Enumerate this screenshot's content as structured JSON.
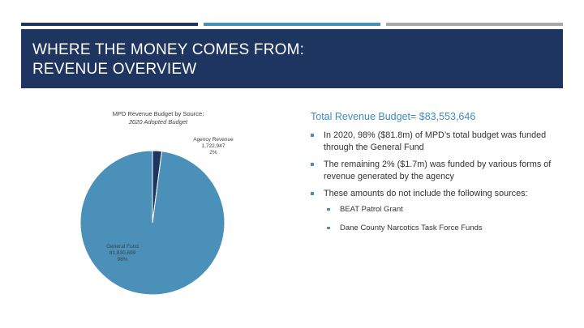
{
  "slide": {
    "title": "WHERE THE MONEY COMES FROM:\nREVENUE OVERVIEW",
    "accent_colors": {
      "dark_navy": "#1e3461",
      "teal_blue": "#4a90b8",
      "gray": "#a7a9ac"
    }
  },
  "chart_data": {
    "type": "pie",
    "title": "MPD Revenue Budget by Source:",
    "subtitle": "2020 Adopted Budget",
    "slices": [
      {
        "name": "Agency Revenue",
        "value_label": "1,722,947",
        "percent_label": "2%",
        "value": 1722947,
        "color": "#1e3461"
      },
      {
        "name": "General Fund",
        "value_label": "81,830,699",
        "percent_label": "98%",
        "value": 81830699,
        "color": "#4a90b8"
      }
    ]
  },
  "content": {
    "total": "Total Revenue Budget= $83,553,646",
    "bullets": [
      "In 2020, 98% ($81.8m) of MPD’s total budget was funded through the General Fund",
      "The remaining 2% ($1.7m) was funded by various forms of revenue generated by the agency",
      "These amounts do not include the following sources:"
    ],
    "sub_bullets": [
      "BEAT Patrol Grant",
      "Dane County Narcotics Task Force Funds"
    ]
  }
}
